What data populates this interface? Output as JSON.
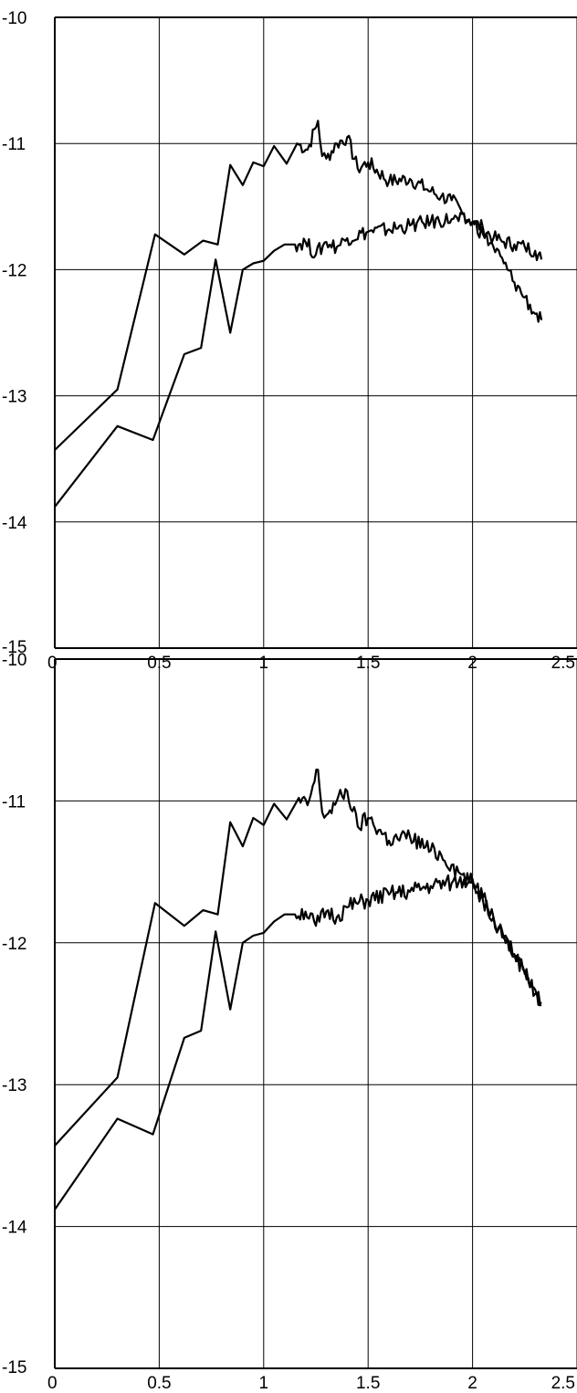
{
  "chart_data": [
    {
      "type": "line",
      "title": "",
      "xlabel": "",
      "ylabel": "",
      "xlim": [
        0,
        2.5
      ],
      "ylim": [
        -15,
        -10
      ],
      "grid": true,
      "x_ticks": [
        0,
        0.5,
        1,
        1.5,
        2,
        2.5
      ],
      "x_tick_labels": [
        "0",
        "0.5",
        "1",
        "1.5",
        "2",
        "2.5"
      ],
      "y_ticks": [
        -10,
        -11,
        -12,
        -13,
        -14,
        -15
      ],
      "y_tick_labels": [
        "-10",
        "-11",
        "-12",
        "-13",
        "-14",
        "-15"
      ],
      "line_color": "#000000",
      "series": [
        {
          "x": [
            0,
            0.3,
            0.48,
            0.62,
            0.71,
            0.78,
            0.84,
            0.9,
            0.95,
            1.0,
            1.05,
            1.11,
            1.16,
            1.21,
            1.26,
            1.28,
            1.3,
            1.35,
            1.4,
            1.45,
            1.5,
            1.6,
            1.7,
            1.8,
            1.85,
            1.9,
            1.95,
            2.0,
            2.05,
            2.1,
            2.15,
            2.2,
            2.25,
            2.3,
            2.33
          ],
          "y": [
            -13.43,
            -12.95,
            -11.72,
            -11.88,
            -11.77,
            -11.8,
            -11.17,
            -11.33,
            -11.15,
            -11.18,
            -11.02,
            -11.16,
            -11.0,
            -11.05,
            -10.82,
            -11.1,
            -11.12,
            -11.0,
            -10.95,
            -11.2,
            -11.15,
            -11.3,
            -11.28,
            -11.38,
            -11.42,
            -11.45,
            -11.55,
            -11.62,
            -11.67,
            -11.75,
            -11.78,
            -11.8,
            -11.82,
            -11.85,
            -11.92
          ]
        },
        {
          "x": [
            0,
            0.3,
            0.47,
            0.62,
            0.7,
            0.77,
            0.84,
            0.9,
            0.95,
            1.0,
            1.05,
            1.1,
            1.15,
            1.2,
            1.25,
            1.3,
            1.35,
            1.4,
            1.5,
            1.6,
            1.7,
            1.8,
            1.9,
            2.0,
            2.05,
            2.1,
            2.15,
            2.2,
            2.25,
            2.3,
            2.33
          ],
          "y": [
            -13.88,
            -13.24,
            -13.35,
            -12.67,
            -12.62,
            -11.92,
            -12.5,
            -12.0,
            -11.95,
            -11.93,
            -11.85,
            -11.8,
            -11.8,
            -11.78,
            -11.88,
            -11.78,
            -11.82,
            -11.75,
            -11.7,
            -11.68,
            -11.65,
            -11.62,
            -11.6,
            -11.62,
            -11.72,
            -11.82,
            -11.95,
            -12.1,
            -12.22,
            -12.35,
            -12.4
          ]
        }
      ]
    },
    {
      "type": "line",
      "title": "",
      "xlabel": "",
      "ylabel": "",
      "xlim": [
        0,
        2.5
      ],
      "ylim": [
        -15,
        -10
      ],
      "grid": true,
      "x_ticks": [
        0,
        0.5,
        1,
        1.5,
        2,
        2.5
      ],
      "x_tick_labels": [
        "0",
        "0.5",
        "1",
        "1.5",
        "2",
        "2.5"
      ],
      "y_ticks": [
        -10,
        -11,
        -12,
        -13,
        -14,
        -15
      ],
      "y_tick_labels": [
        "-10",
        "-11",
        "-12",
        "-13",
        "-14",
        "-15"
      ],
      "line_color": "#000000",
      "series": [
        {
          "x": [
            0,
            0.3,
            0.48,
            0.62,
            0.71,
            0.78,
            0.84,
            0.9,
            0.95,
            1.0,
            1.05,
            1.11,
            1.16,
            1.21,
            1.26,
            1.28,
            1.3,
            1.35,
            1.4,
            1.45,
            1.5,
            1.6,
            1.7,
            1.8,
            1.85,
            1.9,
            1.95,
            2.0,
            2.05,
            2.1,
            2.15,
            2.2,
            2.25,
            2.3,
            2.33
          ],
          "y": [
            -13.43,
            -12.95,
            -11.72,
            -11.88,
            -11.77,
            -11.8,
            -11.15,
            -11.32,
            -11.12,
            -11.17,
            -11.02,
            -11.13,
            -11.0,
            -11.03,
            -10.78,
            -11.08,
            -11.1,
            -11.0,
            -10.93,
            -11.18,
            -11.12,
            -11.28,
            -11.25,
            -11.35,
            -11.38,
            -11.45,
            -11.52,
            -11.58,
            -11.7,
            -11.82,
            -11.95,
            -12.08,
            -12.2,
            -12.33,
            -12.42
          ]
        },
        {
          "x": [
            0,
            0.3,
            0.47,
            0.62,
            0.7,
            0.77,
            0.84,
            0.9,
            0.95,
            1.0,
            1.05,
            1.1,
            1.15,
            1.2,
            1.25,
            1.3,
            1.35,
            1.4,
            1.5,
            1.6,
            1.7,
            1.8,
            1.9,
            2.0,
            2.05,
            2.1,
            2.15,
            2.2,
            2.25,
            2.3,
            2.33
          ],
          "y": [
            -13.88,
            -13.24,
            -13.35,
            -12.67,
            -12.62,
            -11.92,
            -12.47,
            -12.0,
            -11.95,
            -11.93,
            -11.85,
            -11.8,
            -11.8,
            -11.78,
            -11.88,
            -11.78,
            -11.82,
            -11.75,
            -11.7,
            -11.66,
            -11.64,
            -11.6,
            -11.58,
            -11.55,
            -11.68,
            -11.82,
            -11.97,
            -12.1,
            -12.22,
            -12.36,
            -12.44
          ]
        }
      ]
    }
  ]
}
